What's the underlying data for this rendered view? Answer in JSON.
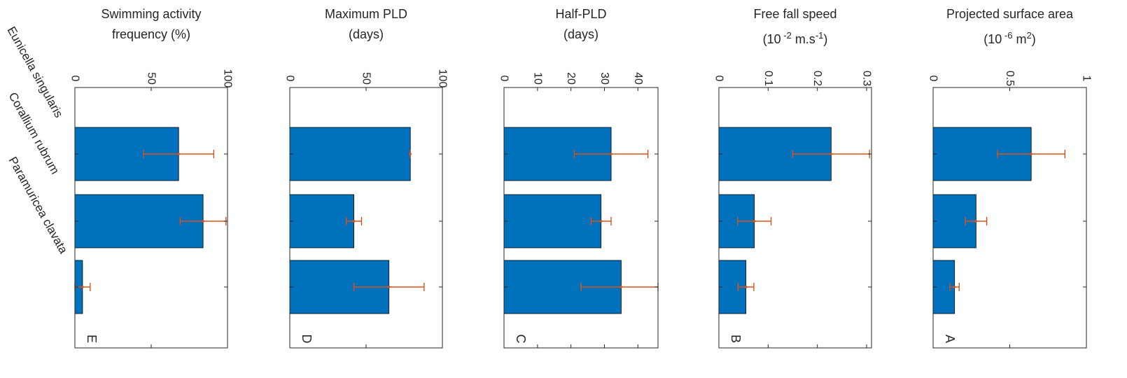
{
  "colors": {
    "bar": "#0072bd",
    "error": "#d95319",
    "axis": "#262626"
  },
  "categories": [
    "Eunicella singularis",
    "Corallium rubrum",
    "Paramuricea clavata"
  ],
  "chart_data": [
    {
      "type": "bar",
      "panel_label": "A",
      "title_lines": [
        "Projected surface area"
      ],
      "unit": {
        "base": "(10",
        "exp": "-6",
        "mid": " m",
        "exp2": "2",
        "end": ")"
      },
      "categories": [
        "Eunicella singularis",
        "Corallium rubrum",
        "Paramuricea clavata"
      ],
      "values": [
        0.64,
        0.28,
        0.14
      ],
      "errors": [
        0.22,
        0.07,
        0.03
      ],
      "ylim": [
        0,
        1
      ],
      "ticks": [
        0,
        0.5,
        1
      ],
      "tick_labels": [
        "0",
        "0.5",
        "1"
      ]
    },
    {
      "type": "bar",
      "panel_label": "B",
      "title_lines": [
        "Free fall speed"
      ],
      "unit": {
        "base": "(10",
        "exp": "-2",
        "mid": " m.s",
        "exp2": "-1",
        "end": ")"
      },
      "categories": [
        "Eunicella singularis",
        "Corallium rubrum",
        "Paramuricea clavata"
      ],
      "values": [
        0.228,
        0.072,
        0.055
      ],
      "errors": [
        0.078,
        0.034,
        0.016
      ],
      "ylim": [
        0,
        0.31
      ],
      "ticks": [
        0,
        0.1,
        0.2,
        0.3
      ],
      "tick_labels": [
        "0",
        "0.1",
        "0.2",
        "0.3"
      ]
    },
    {
      "type": "bar",
      "panel_label": "C",
      "title_lines": [
        "Half-PLD",
        "(days)"
      ],
      "categories": [
        "Eunicella singularis",
        "Corallium rubrum",
        "Paramuricea clavata"
      ],
      "values": [
        32,
        29,
        35
      ],
      "errors": [
        11,
        3,
        12
      ],
      "ylim": [
        0,
        46
      ],
      "ticks": [
        0,
        10,
        20,
        30,
        40
      ],
      "tick_labels": [
        "0",
        "10",
        "20",
        "30",
        "40"
      ]
    },
    {
      "type": "bar",
      "panel_label": "D",
      "title_lines": [
        "Maximum PLD",
        "(days)"
      ],
      "categories": [
        "Eunicella singularis",
        "Corallium rubrum",
        "Paramuricea clavata"
      ],
      "values": [
        79,
        42,
        65
      ],
      "errors": [
        0,
        5,
        23
      ],
      "ylim": [
        0,
        100
      ],
      "ticks": [
        0,
        50,
        100
      ],
      "tick_labels": [
        "0",
        "50",
        "100"
      ]
    },
    {
      "type": "bar",
      "panel_label": "E",
      "title_lines": [
        "Swimming activity",
        "frequency (%)"
      ],
      "categories": [
        "Eunicella singularis",
        "Corallium rubrum",
        "Paramuricea clavata"
      ],
      "values": [
        68,
        84,
        5
      ],
      "errors": [
        23,
        15,
        5
      ],
      "ylim": [
        0,
        100
      ],
      "ticks": [
        0,
        50,
        100
      ],
      "tick_labels": [
        "0",
        "50",
        "100"
      ]
    }
  ]
}
